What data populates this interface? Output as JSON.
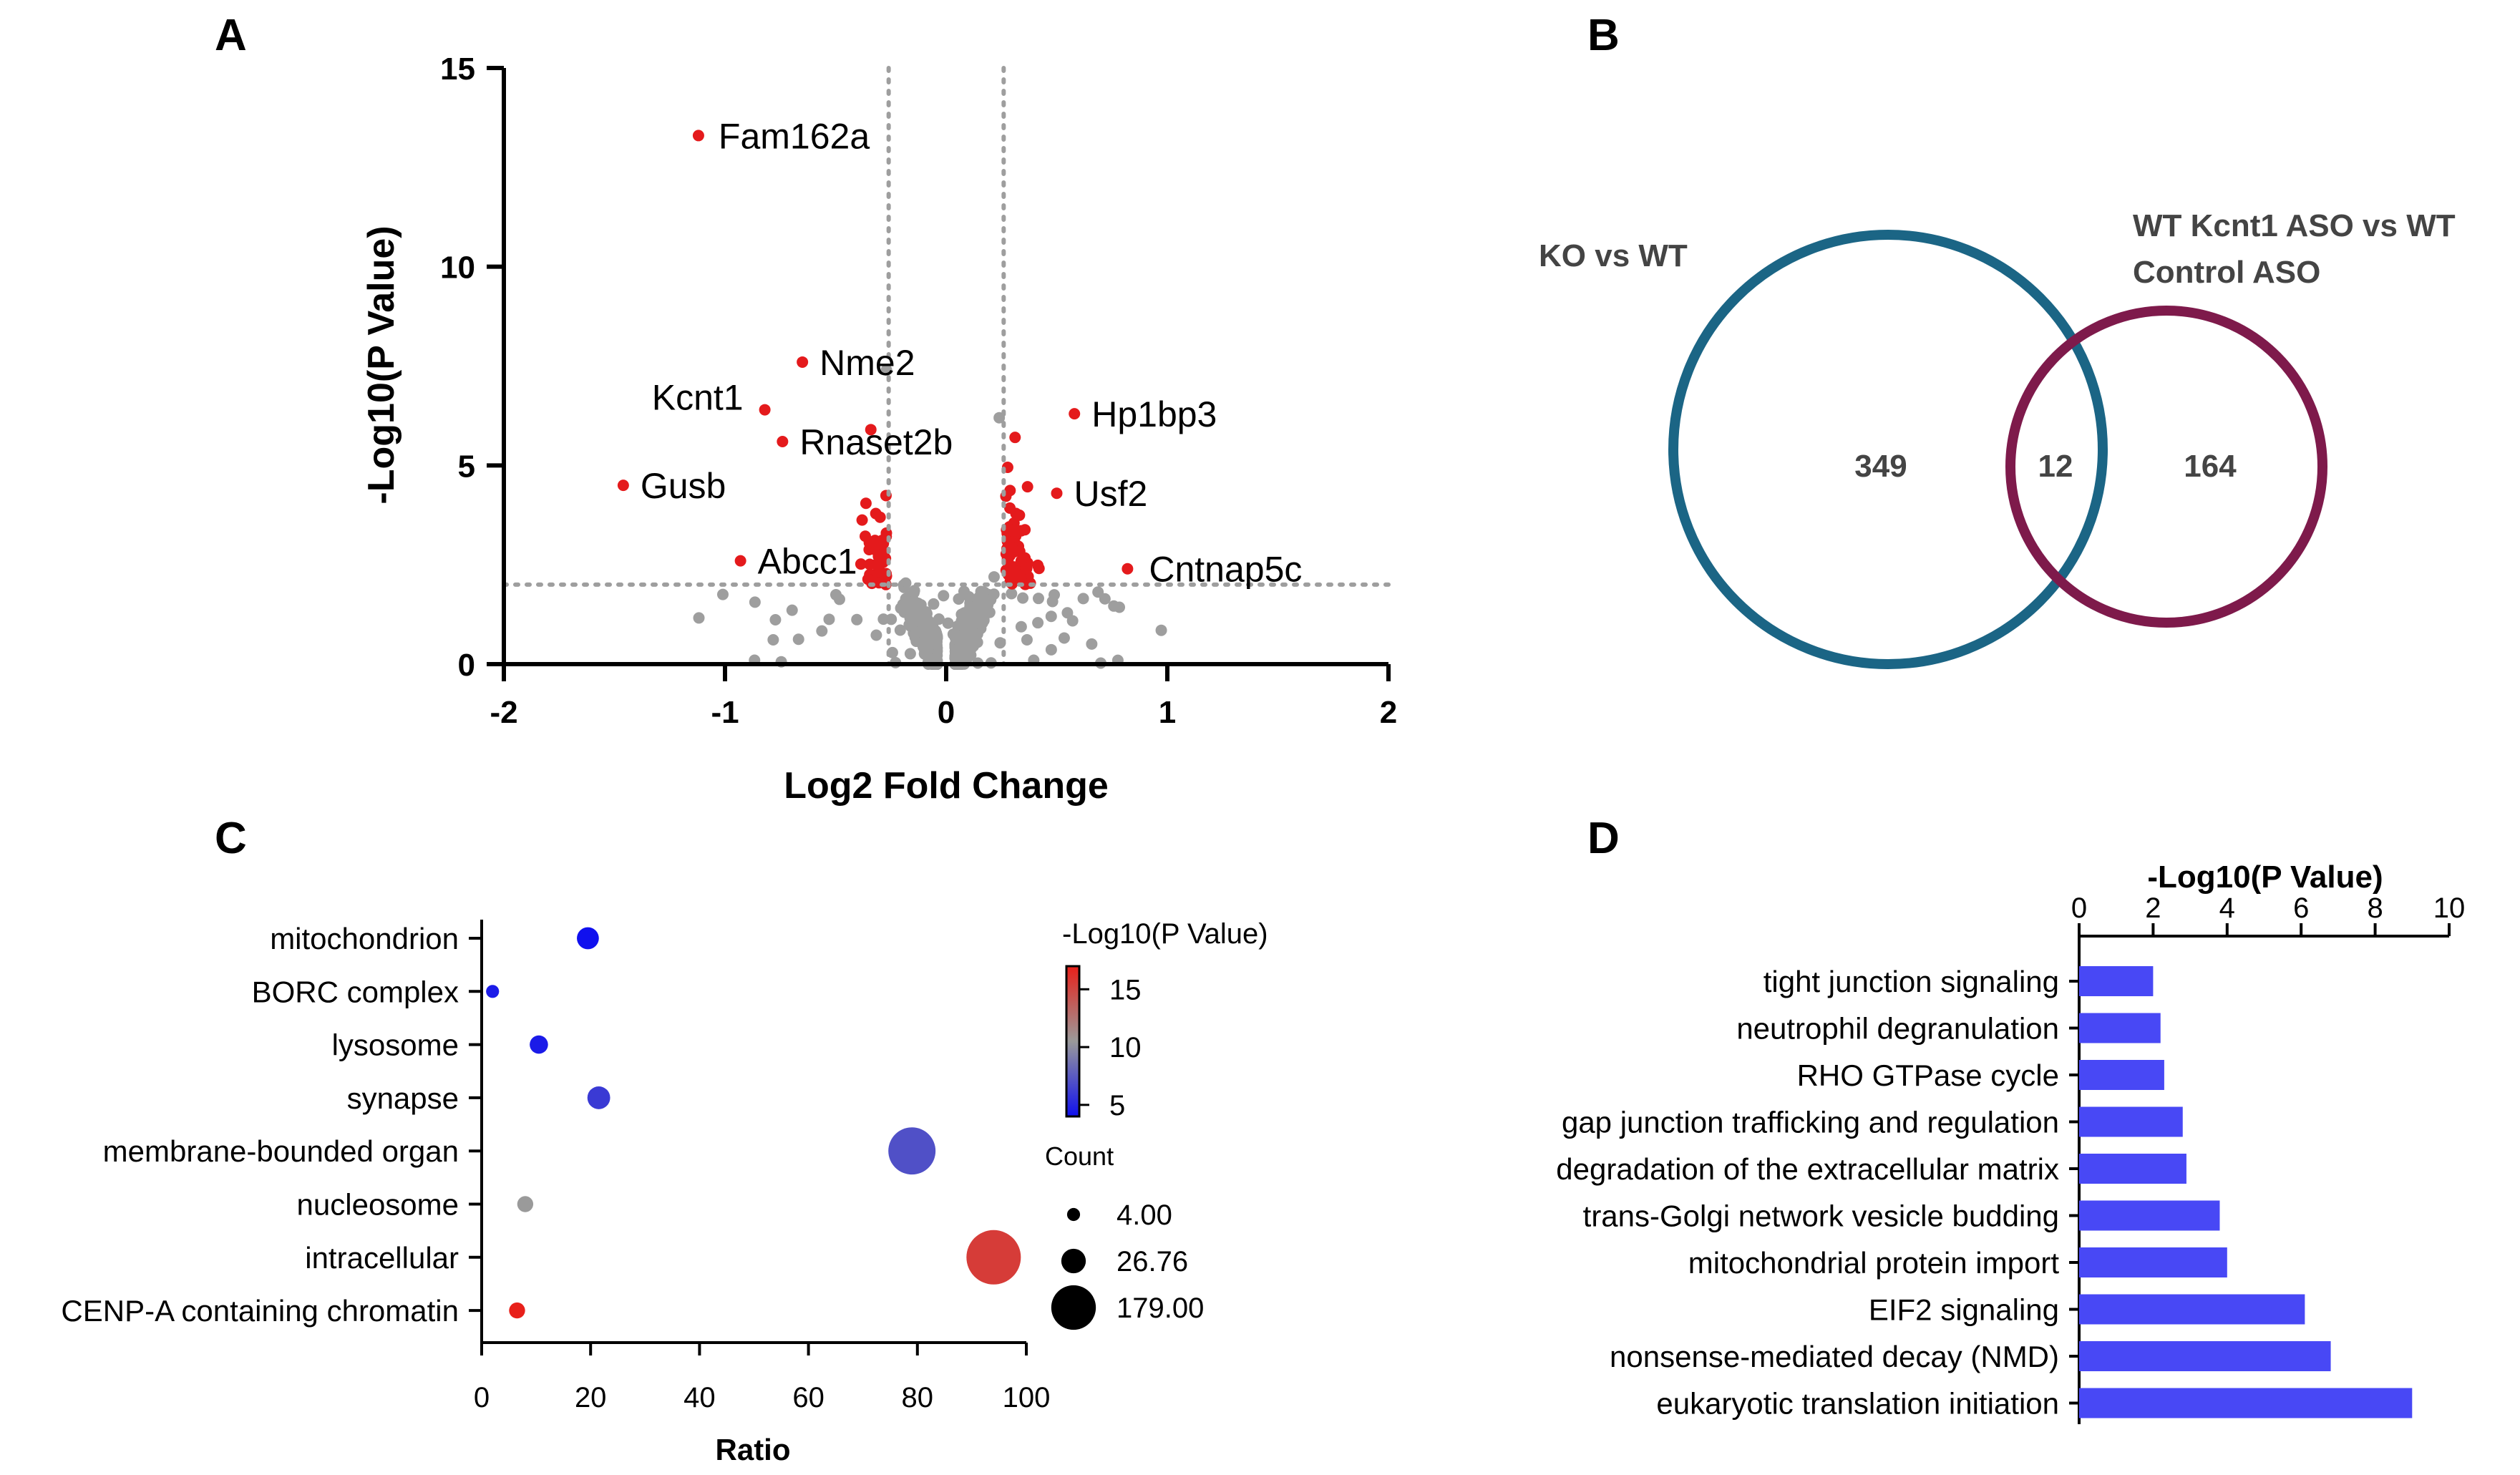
{
  "panel_labels": [
    "A",
    "B",
    "C",
    "D"
  ],
  "chart_data": [
    {
      "type": "scatter",
      "id": "A",
      "xlabel": "Log2 Fold Change",
      "ylabel": "-Log10(P Value)",
      "xlim": [
        -2,
        2
      ],
      "ylim": [
        0,
        15
      ],
      "xticks": [
        "-2",
        "-1",
        "0",
        "1",
        "2"
      ],
      "yticks": [
        "0",
        "5",
        "10",
        "15"
      ],
      "thresholds": {
        "x": [
          -0.26,
          0.26
        ],
        "y": 2
      },
      "colors": {
        "significant": "#e41a1c",
        "not_significant": "#9e9e9e"
      },
      "labeled_genes": [
        {
          "name": "Fam162a",
          "x": -1.12,
          "y": 13.3
        },
        {
          "name": "Nme2",
          "x": -0.65,
          "y": 7.6
        },
        {
          "name": "Kcnt1",
          "x": -0.82,
          "y": 6.4
        },
        {
          "name": "Rnaset2b",
          "x": -0.74,
          "y": 5.6
        },
        {
          "name": "Gusb",
          "x": -1.46,
          "y": 4.5
        },
        {
          "name": "Abcc1",
          "x": -0.93,
          "y": 2.6
        },
        {
          "name": "Hp1bp3",
          "x": 0.58,
          "y": 6.3
        },
        {
          "name": "Usf2",
          "x": 0.5,
          "y": 4.3
        },
        {
          "name": "Cntnap5c",
          "x": 0.82,
          "y": 2.4
        }
      ]
    },
    {
      "type": "venn",
      "id": "B",
      "sets": [
        {
          "name": "KO vs WT",
          "only": "349",
          "color": "#1b6585"
        },
        {
          "name_lines": [
            "WT Kcnt1 ASO vs WT",
            "Control ASO"
          ],
          "only": "164",
          "color": "#7e1a4b"
        }
      ],
      "intersection": "12"
    },
    {
      "type": "scatter",
      "id": "C",
      "xlabel": "Ratio",
      "xlim": [
        0,
        100
      ],
      "xticks": [
        "0",
        "20",
        "40",
        "60",
        "80",
        "100"
      ],
      "categories": [
        "mitochondrion",
        "BORC complex",
        "lysosome",
        "synapse",
        "membrane-bounded organ",
        "nucleosome",
        "intracellular",
        "CENP-A containing chromatin"
      ],
      "points": [
        {
          "category": "mitochondrion",
          "ratio": 19.5,
          "neg_log10_p": 4.0,
          "count": 20
        },
        {
          "category": "BORC complex",
          "ratio": 2,
          "neg_log10_p": 4.5,
          "count": 4
        },
        {
          "category": "lysosome",
          "ratio": 10.5,
          "neg_log10_p": 4.5,
          "count": 12
        },
        {
          "category": "synapse",
          "ratio": 21.5,
          "neg_log10_p": 6.0,
          "count": 22
        },
        {
          "category": "membrane-bounded organ",
          "ratio": 79,
          "neg_log10_p": 7.0,
          "count": 130
        },
        {
          "category": "nucleosome",
          "ratio": 8,
          "neg_log10_p": 10.5,
          "count": 8
        },
        {
          "category": "intracellular",
          "ratio": 94,
          "neg_log10_p": 15.5,
          "count": 179
        },
        {
          "category": "CENP-A containing chromatin",
          "ratio": 6.5,
          "neg_log10_p": 17.0,
          "count": 8
        }
      ],
      "color_legend": {
        "title": "-Log10(P Value)",
        "ticks": [
          "15",
          "10",
          "5"
        ],
        "range": [
          4,
          17
        ],
        "colors": [
          "#1010ee",
          "#9a9a9a",
          "#e8201a"
        ]
      },
      "size_legend": {
        "title": "Count",
        "entries": [
          {
            "label": "4.00",
            "count": 4
          },
          {
            "label": "26.76",
            "count": 26.76
          },
          {
            "label": "179.00",
            "count": 179
          }
        ]
      }
    },
    {
      "type": "bar",
      "id": "D",
      "orientation": "horizontal",
      "xlabel": "-Log10(P Value)",
      "xlim": [
        0,
        10
      ],
      "xticks": [
        "0",
        "2",
        "4",
        "6",
        "8",
        "10"
      ],
      "bar_color": "#4848f5",
      "categories": [
        "tight junction signaling",
        "neutrophil degranulation",
        "RHO GTPase cycle",
        "gap junction trafficking and regulation",
        "degradation of the extracellular matrix",
        "trans-Golgi network vesicle budding",
        "mitochondrial protein import",
        "EIF2 signaling",
        "nonsense-mediated decay (NMD)",
        "eukaryotic translation initiation"
      ],
      "values": [
        2.0,
        2.2,
        2.3,
        2.8,
        2.9,
        3.8,
        4.0,
        6.1,
        6.8,
        9.0
      ]
    }
  ]
}
